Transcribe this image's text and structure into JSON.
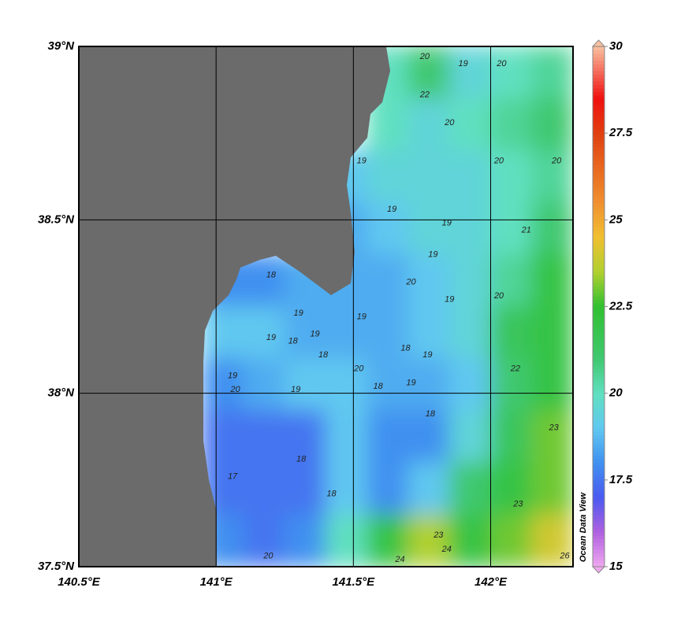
{
  "chart_data": {
    "type": "heatmap",
    "xbins": [
      140.5,
      140.65,
      140.8,
      140.95,
      141.1,
      141.25,
      141.4,
      141.55,
      141.7,
      141.85,
      142.0,
      142.15,
      142.3
    ],
    "ybins": [
      39.0,
      38.85,
      38.7,
      38.55,
      38.4,
      38.25,
      38.1,
      37.95,
      37.8,
      37.65,
      37.5
    ],
    "values": [
      [
        null,
        null,
        null,
        null,
        null,
        null,
        null,
        20,
        21,
        19.5,
        20,
        20.5
      ],
      [
        null,
        null,
        null,
        null,
        null,
        null,
        null,
        20,
        19.5,
        20,
        20.5,
        21
      ],
      [
        null,
        null,
        null,
        null,
        null,
        null,
        19,
        19.5,
        19.5,
        19.5,
        20,
        20.5
      ],
      [
        null,
        null,
        null,
        null,
        null,
        null,
        18.5,
        19,
        19.5,
        19.5,
        20,
        21
      ],
      [
        null,
        null,
        null,
        18,
        18,
        18.5,
        18.5,
        18.5,
        19,
        19.5,
        20.5,
        22
      ],
      [
        null,
        null,
        null,
        19,
        19,
        18.5,
        18.5,
        18.5,
        19,
        19.5,
        21.5,
        22
      ],
      [
        null,
        null,
        null,
        18,
        18.5,
        19,
        19,
        18.5,
        18.5,
        19,
        21,
        22
      ],
      [
        null,
        null,
        null,
        17.5,
        17.5,
        17.5,
        19,
        18,
        18,
        19.5,
        21.5,
        23
      ],
      [
        null,
        null,
        null,
        17.5,
        17.5,
        17.5,
        19,
        18,
        19,
        21,
        22,
        23
      ],
      [
        null,
        null,
        null,
        18,
        17.5,
        18,
        20,
        22,
        23.5,
        22,
        23,
        24
      ]
    ],
    "xlim": [
      140.5,
      142.3
    ],
    "ylim": [
      37.5,
      39.0
    ],
    "xticks": [
      {
        "value": 140.5,
        "label": "140.5°E"
      },
      {
        "value": 141.0,
        "label": "141°E"
      },
      {
        "value": 141.5,
        "label": "141.5°E"
      },
      {
        "value": 142.0,
        "label": "142°E"
      }
    ],
    "yticks": [
      {
        "value": 39.0,
        "label": "39°N"
      },
      {
        "value": 38.5,
        "label": "38.5°N"
      },
      {
        "value": 38.0,
        "label": "38°N"
      },
      {
        "value": 37.5,
        "label": "37.5°N"
      }
    ],
    "grid": true,
    "colorbar": {
      "lim": [
        15,
        30
      ],
      "ticks": [
        30,
        27.5,
        25,
        22.5,
        20,
        17.5,
        15
      ]
    },
    "colorscale": [
      [
        15,
        "#f0a8f0"
      ],
      [
        16,
        "#b060e0"
      ],
      [
        17,
        "#4a5af0"
      ],
      [
        18,
        "#4090f0"
      ],
      [
        19,
        "#60c8f0"
      ],
      [
        20,
        "#60e0c0"
      ],
      [
        21,
        "#40c870"
      ],
      [
        22.5,
        "#30c030"
      ],
      [
        23.5,
        "#b0d030"
      ],
      [
        24.5,
        "#f0c030"
      ],
      [
        25.5,
        "#f09030"
      ],
      [
        27.5,
        "#e04010"
      ],
      [
        28.5,
        "#f01010"
      ],
      [
        30,
        "#f8c0a0"
      ]
    ],
    "land_color": "#6b6b6b",
    "watermark": "Ocean Data View",
    "contour_labels": [
      {
        "x": 141.76,
        "y": 38.97,
        "value": 20
      },
      {
        "x": 141.9,
        "y": 38.95,
        "value": 19
      },
      {
        "x": 142.04,
        "y": 38.95,
        "value": 20
      },
      {
        "x": 141.76,
        "y": 38.86,
        "value": 22
      },
      {
        "x": 141.85,
        "y": 38.78,
        "value": 20
      },
      {
        "x": 141.53,
        "y": 38.67,
        "value": 19
      },
      {
        "x": 142.03,
        "y": 38.67,
        "value": 20
      },
      {
        "x": 142.24,
        "y": 38.67,
        "value": 20
      },
      {
        "x": 141.64,
        "y": 38.53,
        "value": 19
      },
      {
        "x": 141.84,
        "y": 38.49,
        "value": 19
      },
      {
        "x": 141.79,
        "y": 38.4,
        "value": 19
      },
      {
        "x": 142.13,
        "y": 38.47,
        "value": 21
      },
      {
        "x": 141.71,
        "y": 38.32,
        "value": 20
      },
      {
        "x": 141.85,
        "y": 38.27,
        "value": 19
      },
      {
        "x": 142.03,
        "y": 38.28,
        "value": 20
      },
      {
        "x": 141.2,
        "y": 38.34,
        "value": 18
      },
      {
        "x": 141.3,
        "y": 38.23,
        "value": 19
      },
      {
        "x": 141.53,
        "y": 38.22,
        "value": 19
      },
      {
        "x": 141.36,
        "y": 38.17,
        "value": 19
      },
      {
        "x": 141.2,
        "y": 38.16,
        "value": 19
      },
      {
        "x": 141.28,
        "y": 38.15,
        "value": 18
      },
      {
        "x": 141.69,
        "y": 38.13,
        "value": 18
      },
      {
        "x": 141.77,
        "y": 38.11,
        "value": 19
      },
      {
        "x": 141.39,
        "y": 38.11,
        "value": 18
      },
      {
        "x": 141.06,
        "y": 38.05,
        "value": 19
      },
      {
        "x": 141.52,
        "y": 38.07,
        "value": 20
      },
      {
        "x": 141.59,
        "y": 38.02,
        "value": 18
      },
      {
        "x": 141.71,
        "y": 38.03,
        "value": 19
      },
      {
        "x": 141.07,
        "y": 38.01,
        "value": 20
      },
      {
        "x": 141.29,
        "y": 38.01,
        "value": 19
      },
      {
        "x": 142.09,
        "y": 38.07,
        "value": 22
      },
      {
        "x": 141.78,
        "y": 37.94,
        "value": 18
      },
      {
        "x": 142.23,
        "y": 37.9,
        "value": 23
      },
      {
        "x": 141.31,
        "y": 37.81,
        "value": 18
      },
      {
        "x": 141.06,
        "y": 37.76,
        "value": 17
      },
      {
        "x": 142.1,
        "y": 37.68,
        "value": 23
      },
      {
        "x": 141.81,
        "y": 37.59,
        "value": 23
      },
      {
        "x": 141.84,
        "y": 37.55,
        "value": 24
      },
      {
        "x": 141.67,
        "y": 37.52,
        "value": 24
      },
      {
        "x": 142.27,
        "y": 37.53,
        "value": 26
      },
      {
        "x": 141.19,
        "y": 37.53,
        "value": 20
      },
      {
        "x": 141.42,
        "y": 37.71,
        "value": 18
      }
    ]
  }
}
